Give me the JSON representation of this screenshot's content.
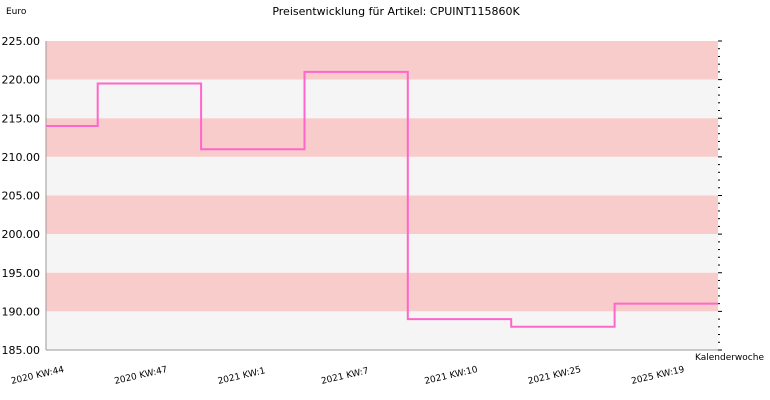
{
  "chart_data": {
    "type": "line",
    "step": true,
    "title": "Preisentwicklung für Artikel: CPUINT115860K",
    "ylabel": "Euro",
    "xlabel": "Kalenderwoche",
    "ylim": [
      185,
      225
    ],
    "y_ticks": [
      "185.00",
      "190.00",
      "195.00",
      "200.00",
      "205.00",
      "210.00",
      "215.00",
      "220.00",
      "225.00"
    ],
    "categories": [
      "2020 KW:44",
      "2020 KW:47",
      "2021 KW:1",
      "2021 KW:7",
      "2021 KW:10",
      "2021 KW:25",
      "2025 KW:19"
    ],
    "values": [
      214.0,
      219.5,
      211.0,
      221.0,
      189.0,
      188.0,
      191.0
    ],
    "band_colors": [
      "#f9cccc",
      "#f5f5f5"
    ],
    "line_color": "#ff66cc",
    "grid": false,
    "legend": "none"
  }
}
